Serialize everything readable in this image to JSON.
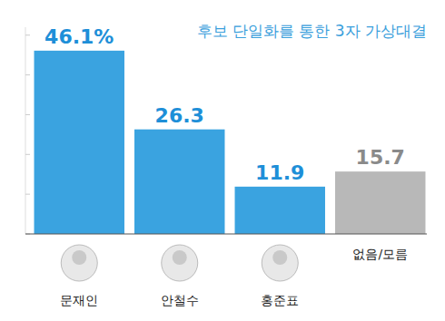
{
  "chart_data": {
    "type": "bar",
    "title": "후보 단일화를 통한 3자 가상대결",
    "categories": [
      "문재인",
      "안철수",
      "홍준표",
      "없음/모름"
    ],
    "values": [
      46.1,
      26.3,
      11.9,
      15.7
    ],
    "value_labels": [
      "46.1%",
      "26.3",
      "11.9",
      "15.7"
    ],
    "colors": [
      "#3aa3e0",
      "#3aa3e0",
      "#3aa3e0",
      "#b8b8b8"
    ],
    "ylim": [
      0,
      52
    ],
    "yticks": [
      0,
      10,
      20,
      30,
      40,
      50
    ],
    "tick_labels": false,
    "data_labels": true,
    "grid": false
  }
}
